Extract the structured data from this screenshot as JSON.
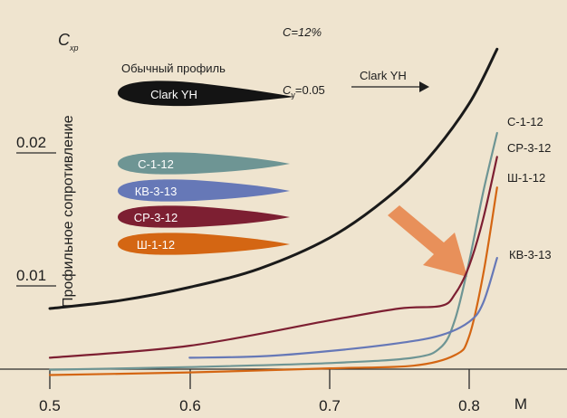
{
  "chart_data": {
    "type": "line",
    "title": "",
    "xlabel": "M",
    "ylabel": "Профильное сопротивление",
    "ysymbol": {
      "main": "C",
      "sub": "xp"
    },
    "xlim": [
      0.5,
      0.82
    ],
    "ylim": [
      0.0,
      0.025
    ],
    "x_ticks": [
      "0.5",
      "0.6",
      "0.7",
      "0.8"
    ],
    "y_ticks": [
      "0.01",
      "0.02"
    ],
    "grid": false,
    "annotations": {
      "thickness": "C=12%",
      "lift": {
        "main": "C",
        "sub": "y",
        "rest": "=0.05"
      },
      "reference_caption": "Обычный профиль",
      "arrow_label": "Clark YH"
    },
    "series": [
      {
        "name": "Clark YH",
        "color": "#1a1a1a",
        "x": [
          0.5,
          0.55,
          0.6,
          0.65,
          0.7,
          0.74,
          0.77,
          0.8,
          0.82
        ],
        "y": [
          0.0083,
          0.0089,
          0.0099,
          0.0113,
          0.0136,
          0.0165,
          0.0195,
          0.0237,
          0.0278
        ]
      },
      {
        "name": "С-1-12",
        "color": "#6e9594",
        "x": [
          0.5,
          0.6,
          0.7,
          0.76,
          0.78,
          0.79,
          0.8,
          0.81,
          0.82
        ],
        "y": [
          0.0037,
          0.0039,
          0.0042,
          0.0046,
          0.0054,
          0.0075,
          0.0118,
          0.017,
          0.0215
        ]
      },
      {
        "name": "СР-3-12",
        "color": "#7d1f32",
        "x": [
          0.5,
          0.6,
          0.7,
          0.75,
          0.78,
          0.79,
          0.8,
          0.81,
          0.82
        ],
        "y": [
          0.0046,
          0.0055,
          0.0074,
          0.0083,
          0.0085,
          0.0094,
          0.0115,
          0.015,
          0.0197
        ]
      },
      {
        "name": "Ш-1-12",
        "color": "#d46613",
        "x": [
          0.5,
          0.6,
          0.7,
          0.76,
          0.79,
          0.8,
          0.81,
          0.82
        ],
        "y": [
          0.0033,
          0.0035,
          0.0038,
          0.004,
          0.0048,
          0.0062,
          0.0108,
          0.0174
        ]
      },
      {
        "name": "КВ-3-13",
        "color": "#6678b7",
        "x": [
          0.6,
          0.65,
          0.7,
          0.75,
          0.78,
          0.8,
          0.81,
          0.82
        ],
        "y": [
          0.0046,
          0.0047,
          0.0051,
          0.0057,
          0.0063,
          0.0073,
          0.0087,
          0.0121
        ]
      }
    ],
    "profiles": [
      {
        "name": "Clark YH",
        "color": "#141414"
      },
      {
        "name": "С-1-12",
        "color": "#6e9594"
      },
      {
        "name": "КВ-3-13",
        "color": "#6678b7"
      },
      {
        "name": "СР-3-12",
        "color": "#7d1f32"
      },
      {
        "name": "Ш-1-12",
        "color": "#d46613"
      }
    ],
    "highlight_arrow_color": "#e8905a"
  }
}
